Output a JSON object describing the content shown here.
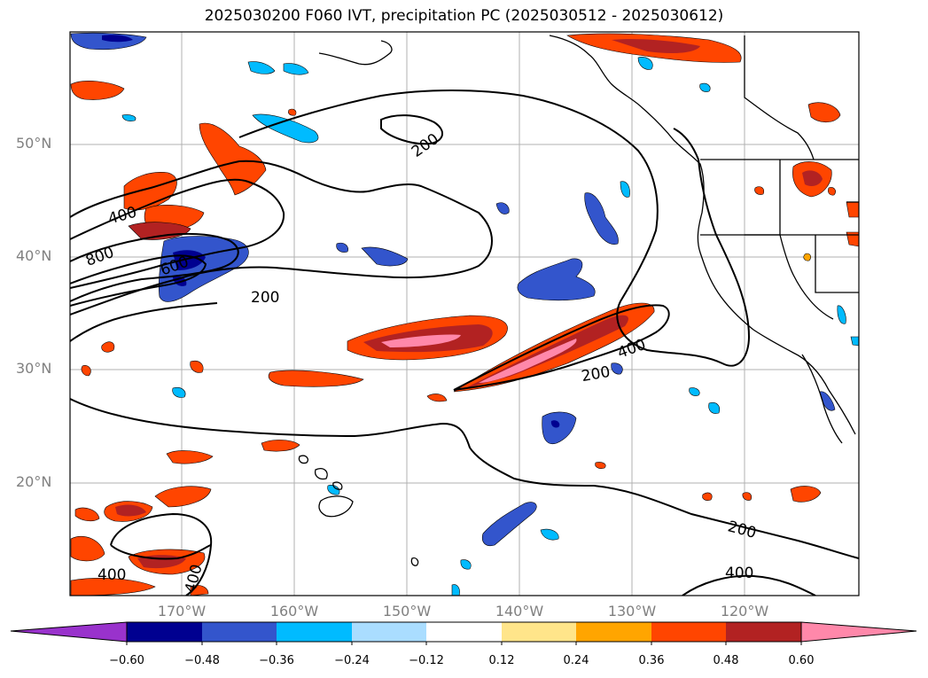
{
  "title": "2025030200 F060 IVT, precipitation PC (2025030512 - 2025030612)",
  "lat_labels": [
    "50°N",
    "40°N",
    "30°N",
    "20°N"
  ],
  "lon_labels": [
    "170°W",
    "160°W",
    "150°W",
    "140°W",
    "130°W",
    "120°W"
  ],
  "contour_labels": [
    "200",
    "400",
    "800",
    "600",
    "200",
    "400",
    "200",
    "200",
    "400",
    "400",
    "400"
  ],
  "colorbar": {
    "ticks": [
      "−0.60",
      "−0.48",
      "−0.36",
      "−0.24",
      "−0.12",
      "0.12",
      "0.24",
      "0.36",
      "0.48",
      "0.60"
    ],
    "colors": [
      "#9932CC",
      "#000090",
      "#3355CC",
      "#00BBFF",
      "#AADDFF",
      "#FFFFFF",
      "#FFE58A",
      "#FFA500",
      "#FF4500",
      "#B22222",
      "#FF88AA"
    ]
  },
  "colors": {
    "pink": "#FF88AA",
    "dark_red": "#B22222",
    "orange_red": "#FF4500",
    "orange": "#FFA500",
    "light_yellow": "#FFE58A",
    "light_blue": "#AADDFF",
    "sky_blue": "#00BBFF",
    "blue": "#3355CC",
    "navy": "#000090"
  }
}
